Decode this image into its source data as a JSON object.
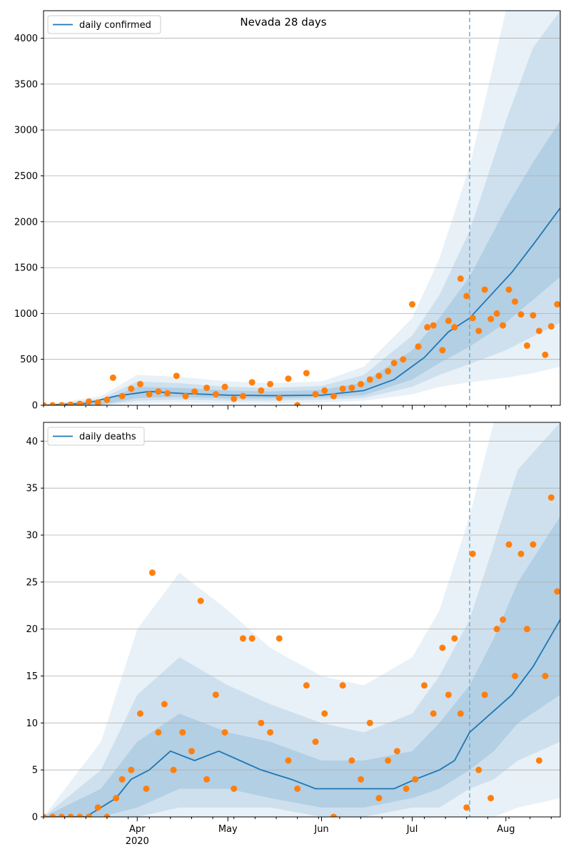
{
  "chart_data": [
    {
      "type": "line",
      "title": "Nevada 28 days",
      "legend": [
        "daily confirmed"
      ],
      "legend_position": "top-left",
      "grid": "horizontal",
      "x_range": [
        "2020-03-01",
        "2020-08-19"
      ],
      "ylim": [
        0,
        4300
      ],
      "yticks": [
        0,
        500,
        1000,
        1500,
        2000,
        2500,
        3000,
        3500,
        4000
      ],
      "forecast_start": "2020-07-20",
      "series": [
        {
          "name": "daily confirmed",
          "x": [
            "2020-03-01",
            "2020-03-15",
            "2020-03-25",
            "2020-04-05",
            "2020-04-15",
            "2020-05-01",
            "2020-05-15",
            "2020-06-01",
            "2020-06-15",
            "2020-06-25",
            "2020-07-05",
            "2020-07-13",
            "2020-07-20",
            "2020-07-27",
            "2020-08-03",
            "2020-08-10",
            "2020-08-19"
          ],
          "values": [
            0,
            20,
            100,
            150,
            130,
            110,
            105,
            110,
            160,
            280,
            520,
            800,
            950,
            1200,
            1450,
            1750,
            2150
          ]
        }
      ],
      "bands": [
        {
          "x": [
            "2020-03-01",
            "2020-03-20",
            "2020-04-01",
            "2020-04-15",
            "2020-05-01",
            "2020-05-15",
            "2020-06-01",
            "2020-06-15",
            "2020-07-01",
            "2020-07-10",
            "2020-07-20",
            "2020-08-01",
            "2020-08-10",
            "2020-08-19"
          ],
          "lower": [
            0,
            0,
            20,
            30,
            20,
            20,
            30,
            50,
            120,
            200,
            250,
            300,
            350,
            420
          ],
          "upper": [
            0,
            100,
            330,
            310,
            260,
            240,
            260,
            420,
            950,
            1600,
            2600,
            4300,
            4300,
            4300
          ]
        },
        {
          "x": [
            "2020-03-01",
            "2020-03-20",
            "2020-04-01",
            "2020-04-15",
            "2020-05-01",
            "2020-05-15",
            "2020-06-01",
            "2020-06-15",
            "2020-07-01",
            "2020-07-10",
            "2020-07-20",
            "2020-08-01",
            "2020-08-10",
            "2020-08-19"
          ],
          "lower": [
            0,
            0,
            50,
            60,
            50,
            50,
            60,
            80,
            200,
            330,
            450,
            600,
            750,
            900
          ],
          "upper": [
            0,
            70,
            260,
            240,
            200,
            190,
            210,
            330,
            760,
            1200,
            1900,
            3100,
            3900,
            4300
          ]
        },
        {
          "x": [
            "2020-03-01",
            "2020-03-20",
            "2020-04-01",
            "2020-04-15",
            "2020-05-01",
            "2020-05-15",
            "2020-06-01",
            "2020-06-15",
            "2020-07-01",
            "2020-07-10",
            "2020-07-20",
            "2020-08-01",
            "2020-08-10",
            "2020-08-19"
          ],
          "lower": [
            0,
            5,
            80,
            90,
            75,
            75,
            85,
            110,
            280,
            460,
            640,
            900,
            1150,
            1400
          ],
          "upper": [
            0,
            45,
            200,
            190,
            160,
            150,
            165,
            250,
            600,
            950,
            1400,
            2150,
            2650,
            3100
          ]
        }
      ],
      "points": {
        "x": [
          "2020-03-01",
          "2020-03-04",
          "2020-03-07",
          "2020-03-10",
          "2020-03-13",
          "2020-03-16",
          "2020-03-19",
          "2020-03-22",
          "2020-03-24",
          "2020-03-27",
          "2020-03-30",
          "2020-04-02",
          "2020-04-05",
          "2020-04-08",
          "2020-04-11",
          "2020-04-14",
          "2020-04-17",
          "2020-04-20",
          "2020-04-24",
          "2020-04-27",
          "2020-04-30",
          "2020-05-03",
          "2020-05-06",
          "2020-05-09",
          "2020-05-12",
          "2020-05-15",
          "2020-05-18",
          "2020-05-21",
          "2020-05-24",
          "2020-05-27",
          "2020-05-30",
          "2020-06-02",
          "2020-06-05",
          "2020-06-08",
          "2020-06-11",
          "2020-06-14",
          "2020-06-17",
          "2020-06-20",
          "2020-06-23",
          "2020-06-25",
          "2020-06-28",
          "2020-07-01",
          "2020-07-03",
          "2020-07-06",
          "2020-07-08",
          "2020-07-11",
          "2020-07-13",
          "2020-07-15",
          "2020-07-17",
          "2020-07-19",
          "2020-07-21",
          "2020-07-23",
          "2020-07-25",
          "2020-07-27",
          "2020-07-29",
          "2020-07-31",
          "2020-08-02",
          "2020-08-04",
          "2020-08-06",
          "2020-08-08",
          "2020-08-10",
          "2020-08-12",
          "2020-08-14",
          "2020-08-16",
          "2020-08-18"
        ],
        "values": [
          0,
          0,
          0,
          5,
          15,
          40,
          30,
          60,
          300,
          100,
          180,
          230,
          120,
          150,
          130,
          320,
          100,
          150,
          190,
          120,
          200,
          70,
          100,
          250,
          160,
          230,
          80,
          290,
          0,
          350,
          120,
          160,
          100,
          180,
          190,
          230,
          280,
          320,
          370,
          460,
          500,
          1100,
          640,
          850,
          870,
          600,
          920,
          850,
          1380,
          1190,
          950,
          810,
          1260,
          940,
          1000,
          870,
          1260,
          1130,
          990,
          650,
          980,
          810,
          550,
          860,
          1100
        ]
      },
      "colors": {
        "line": "#1f77b4",
        "points": "#ff7f0e",
        "band": "#1f77b4"
      }
    },
    {
      "type": "line",
      "title": "",
      "legend": [
        "daily deaths"
      ],
      "legend_position": "top-left",
      "grid": "horizontal",
      "x_range": [
        "2020-03-01",
        "2020-08-19"
      ],
      "ylim": [
        0,
        42
      ],
      "yticks": [
        0,
        5,
        10,
        15,
        20,
        25,
        30,
        35,
        40
      ],
      "xticks": [
        "Apr",
        "May",
        "Jun",
        "Jul",
        "Aug"
      ],
      "xticks_dates": [
        "2020-04-01",
        "2020-05-01",
        "2020-06-01",
        "2020-07-01",
        "2020-08-01"
      ],
      "x_year_label": "2020",
      "forecast_start": "2020-07-20",
      "series": [
        {
          "name": "daily deaths",
          "x": [
            "2020-03-01",
            "2020-03-15",
            "2020-03-20",
            "2020-03-25",
            "2020-03-30",
            "2020-04-05",
            "2020-04-12",
            "2020-04-20",
            "2020-04-28",
            "2020-05-05",
            "2020-05-12",
            "2020-05-22",
            "2020-05-30",
            "2020-06-10",
            "2020-06-25",
            "2020-07-02",
            "2020-07-10",
            "2020-07-15",
            "2020-07-20",
            "2020-07-27",
            "2020-08-03",
            "2020-08-10",
            "2020-08-19"
          ],
          "values": [
            0,
            0,
            1,
            2,
            4,
            5,
            7,
            6,
            7,
            6,
            5,
            4,
            3,
            3,
            3,
            4,
            5,
            6,
            9,
            11,
            13,
            16,
            21
          ]
        }
      ],
      "bands": [
        {
          "x": [
            "2020-03-01",
            "2020-03-20",
            "2020-04-01",
            "2020-04-15",
            "2020-05-01",
            "2020-05-15",
            "2020-06-01",
            "2020-06-15",
            "2020-07-01",
            "2020-07-10",
            "2020-07-20",
            "2020-07-28",
            "2020-08-05",
            "2020-08-19"
          ],
          "lower": [
            0,
            0,
            0,
            0,
            0,
            0,
            0,
            0,
            0,
            0,
            0,
            0,
            1,
            2
          ],
          "upper": [
            0,
            8,
            20,
            26,
            22,
            18,
            15,
            14,
            17,
            22,
            32,
            42,
            42,
            42
          ]
        },
        {
          "x": [
            "2020-03-01",
            "2020-03-20",
            "2020-04-01",
            "2020-04-15",
            "2020-05-01",
            "2020-05-15",
            "2020-06-01",
            "2020-06-15",
            "2020-07-01",
            "2020-07-10",
            "2020-07-20",
            "2020-07-28",
            "2020-08-05",
            "2020-08-19"
          ],
          "lower": [
            0,
            0,
            0,
            1,
            1,
            1,
            0,
            0,
            1,
            1,
            3,
            4,
            6,
            8
          ],
          "upper": [
            0,
            5,
            13,
            17,
            14,
            12,
            10,
            9,
            11,
            15,
            21,
            29,
            37,
            42
          ]
        },
        {
          "x": [
            "2020-03-01",
            "2020-03-20",
            "2020-04-01",
            "2020-04-15",
            "2020-05-01",
            "2020-05-15",
            "2020-06-01",
            "2020-06-15",
            "2020-07-01",
            "2020-07-10",
            "2020-07-20",
            "2020-07-28",
            "2020-08-05",
            "2020-08-19"
          ],
          "lower": [
            0,
            0,
            1,
            3,
            3,
            2,
            1,
            1,
            2,
            3,
            5,
            7,
            10,
            13
          ],
          "upper": [
            0,
            3,
            8,
            11,
            9,
            8,
            6,
            6,
            7,
            10,
            14,
            19,
            25,
            32
          ]
        }
      ],
      "points": {
        "x": [
          "2020-03-01",
          "2020-03-04",
          "2020-03-07",
          "2020-03-10",
          "2020-03-13",
          "2020-03-16",
          "2020-03-19",
          "2020-03-22",
          "2020-03-25",
          "2020-03-27",
          "2020-03-30",
          "2020-04-02",
          "2020-04-04",
          "2020-04-06",
          "2020-04-08",
          "2020-04-10",
          "2020-04-13",
          "2020-04-16",
          "2020-04-19",
          "2020-04-22",
          "2020-04-24",
          "2020-04-27",
          "2020-04-30",
          "2020-05-03",
          "2020-05-06",
          "2020-05-09",
          "2020-05-12",
          "2020-05-15",
          "2020-05-18",
          "2020-05-21",
          "2020-05-24",
          "2020-05-27",
          "2020-05-30",
          "2020-06-02",
          "2020-06-05",
          "2020-06-08",
          "2020-06-11",
          "2020-06-14",
          "2020-06-17",
          "2020-06-20",
          "2020-06-23",
          "2020-06-26",
          "2020-06-29",
          "2020-07-02",
          "2020-07-05",
          "2020-07-08",
          "2020-07-11",
          "2020-07-13",
          "2020-07-15",
          "2020-07-17",
          "2020-07-19",
          "2020-07-21",
          "2020-07-23",
          "2020-07-25",
          "2020-07-27",
          "2020-07-29",
          "2020-07-31",
          "2020-08-02",
          "2020-08-04",
          "2020-08-06",
          "2020-08-08",
          "2020-08-10",
          "2020-08-12",
          "2020-08-14",
          "2020-08-16",
          "2020-08-18"
        ],
        "values": [
          0,
          0,
          0,
          0,
          0,
          0,
          1,
          0,
          2,
          4,
          5,
          11,
          3,
          26,
          9,
          12,
          5,
          9,
          7,
          23,
          4,
          13,
          9,
          3,
          19,
          19,
          10,
          9,
          19,
          6,
          3,
          14,
          8,
          11,
          0,
          14,
          6,
          4,
          10,
          2,
          6,
          7,
          3,
          4,
          14,
          11,
          18,
          13,
          19,
          11,
          1,
          28,
          5,
          13,
          2,
          20,
          21,
          29,
          15,
          28,
          20,
          29,
          6,
          15,
          34,
          24
        ]
      },
      "colors": {
        "line": "#1f77b4",
        "points": "#ff7f0e",
        "band": "#1f77b4"
      }
    }
  ]
}
